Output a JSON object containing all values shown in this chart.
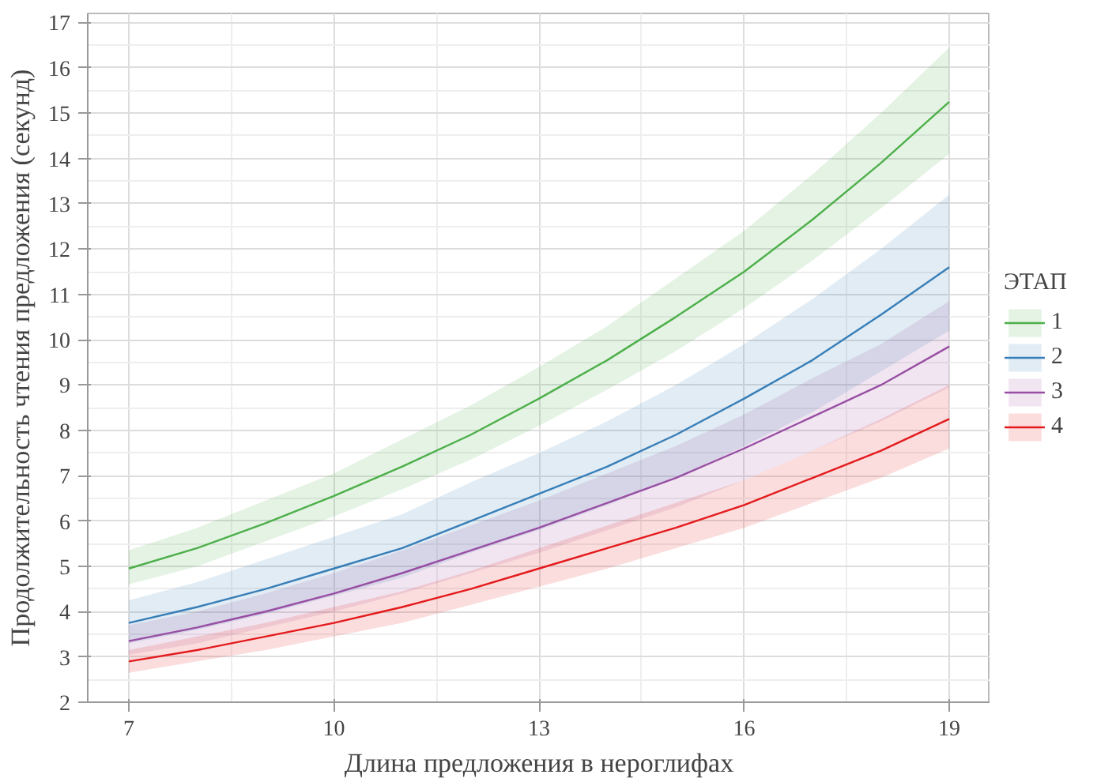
{
  "chart_data": {
    "type": "line",
    "xlabel": "Длина предложения в нероглифах",
    "ylabel": "Продолжительность чтения предложения (секунд)",
    "legend_title": "ЭТАП",
    "legend": "right",
    "grid": true,
    "x": [
      7,
      8,
      9,
      10,
      11,
      12,
      13,
      14,
      15,
      16,
      17,
      18,
      19
    ],
    "xlim": [
      6.4,
      19.6
    ],
    "ylim": [
      2,
      17.2
    ],
    "xticks": [
      7,
      10,
      13,
      16,
      19
    ],
    "yticks": [
      2,
      3,
      4,
      5,
      6,
      7,
      8,
      9,
      10,
      11,
      12,
      13,
      14,
      15,
      16,
      17
    ],
    "series": [
      {
        "name": "1",
        "color": "#4daf4a",
        "values": [
          4.95,
          5.4,
          5.95,
          6.55,
          7.2,
          7.9,
          8.7,
          9.55,
          10.5,
          11.5,
          12.65,
          13.9,
          15.25
        ],
        "lower": [
          4.6,
          5.0,
          5.55,
          6.1,
          6.7,
          7.35,
          8.1,
          8.9,
          9.75,
          10.7,
          11.75,
          12.9,
          14.1
        ],
        "upper": [
          5.35,
          5.85,
          6.45,
          7.05,
          7.8,
          8.55,
          9.4,
          10.3,
          11.35,
          12.4,
          13.65,
          15.0,
          16.45
        ]
      },
      {
        "name": "2",
        "color": "#377eb8",
        "values": [
          3.75,
          4.1,
          4.5,
          4.95,
          5.4,
          6.0,
          6.6,
          7.2,
          7.9,
          8.7,
          9.55,
          10.55,
          11.6
        ],
        "lower": [
          3.3,
          3.6,
          3.95,
          4.35,
          4.75,
          5.3,
          5.8,
          6.35,
          6.95,
          7.65,
          8.4,
          9.3,
          10.2
        ],
        "upper": [
          4.25,
          4.65,
          5.15,
          5.65,
          6.15,
          6.85,
          7.5,
          8.2,
          9.0,
          9.9,
          10.9,
          12.0,
          13.2
        ]
      },
      {
        "name": "3",
        "color": "#984ea3",
        "values": [
          3.35,
          3.65,
          4.0,
          4.4,
          4.85,
          5.35,
          5.85,
          6.4,
          6.95,
          7.6,
          8.3,
          9.0,
          9.85
        ],
        "lower": [
          3.05,
          3.3,
          3.65,
          4.0,
          4.4,
          4.85,
          5.3,
          5.8,
          6.3,
          6.9,
          7.55,
          8.2,
          8.95
        ],
        "upper": [
          3.7,
          4.0,
          4.4,
          4.85,
          5.35,
          5.9,
          6.45,
          7.05,
          7.65,
          8.35,
          9.15,
          9.9,
          10.85
        ]
      },
      {
        "name": "4",
        "color": "#e41a1c",
        "values": [
          2.9,
          3.15,
          3.45,
          3.75,
          4.1,
          4.5,
          4.95,
          5.4,
          5.85,
          6.35,
          6.95,
          7.55,
          8.25
        ],
        "lower": [
          2.65,
          2.9,
          3.15,
          3.45,
          3.75,
          4.15,
          4.55,
          4.95,
          5.4,
          5.85,
          6.4,
          6.95,
          7.6
        ],
        "upper": [
          3.15,
          3.45,
          3.75,
          4.1,
          4.45,
          4.9,
          5.4,
          5.9,
          6.4,
          6.9,
          7.55,
          8.25,
          9.0
        ]
      }
    ]
  }
}
